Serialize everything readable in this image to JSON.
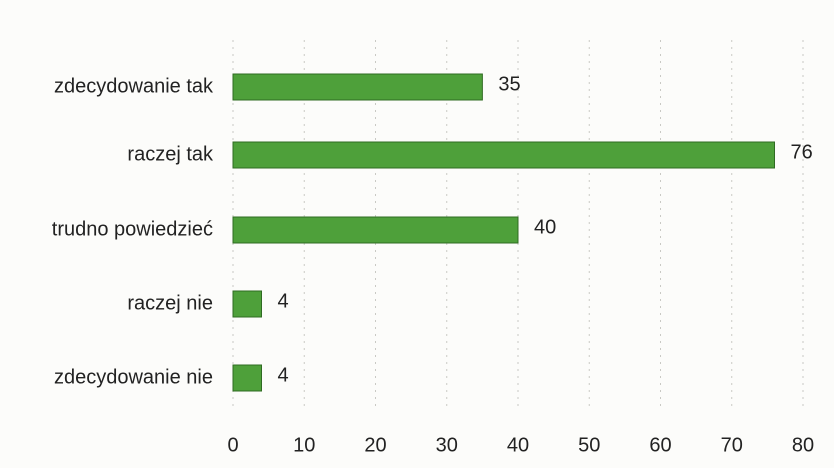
{
  "chart_data": {
    "type": "bar",
    "orientation": "horizontal",
    "categories": [
      "zdecydowanie tak",
      "raczej tak",
      "trudno powiedzieć",
      "raczej nie",
      "zdecydowanie nie"
    ],
    "values": [
      35,
      76,
      40,
      4,
      4
    ],
    "data_labels": [
      "35",
      "76",
      "40",
      "4",
      "4"
    ],
    "title": "",
    "xlabel": "",
    "ylabel": "",
    "xlim": [
      0,
      80
    ],
    "x_ticks": [
      "0",
      "10",
      "20",
      "30",
      "40",
      "50",
      "60",
      "70",
      "80"
    ],
    "grid": true,
    "legend": "none",
    "bar_color": "#4ea03a",
    "bar_border_color": "#2f6b22"
  }
}
